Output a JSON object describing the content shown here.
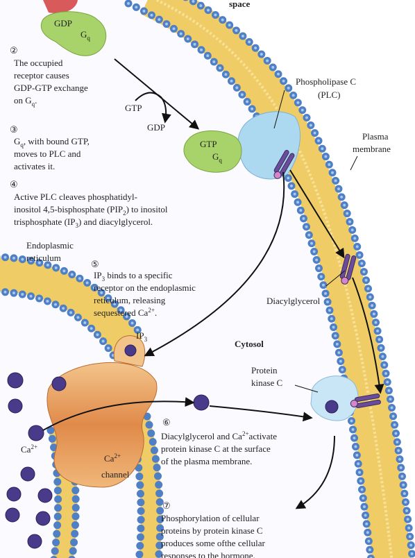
{
  "header": {
    "title": "space"
  },
  "labels": [
    [
      "GDP"
    ],
    [
      "G",
      {
        "sub": "q"
      }
    ],
    [
      "GTP"
    ],
    [
      "GDP"
    ],
    [
      "GTP"
    ],
    [
      "G",
      {
        "sub": "q"
      }
    ],
    [
      "Phospholipase C"
    ],
    [
      "(PLC)"
    ],
    [
      "Plasma"
    ],
    [
      "membrane"
    ],
    [
      "Endoplasmic"
    ],
    [
      "reticulum"
    ],
    [
      "Diacylglycerol"
    ],
    [
      "Cytosol"
    ],
    [
      "IP",
      {
        "sub": "3"
      }
    ],
    [
      "Protein"
    ],
    [
      "kinase C"
    ],
    [
      "Ca",
      {
        "sup": "2+"
      }
    ],
    [
      "Ca",
      {
        "sup": "2+"
      }
    ],
    [
      "channel"
    ]
  ],
  "steps": [
    {
      "number": "②",
      "lines": [
        [
          "The occupied"
        ],
        [
          "receptor causes"
        ],
        [
          "GDP-GTP exchange"
        ],
        [
          "on G",
          {
            "sub": "q"
          },
          "."
        ]
      ]
    },
    {
      "number": "③",
      "lines": [
        [
          "G",
          {
            "sub": "q"
          },
          ", with bound GTP,"
        ],
        [
          "moves to PLC and"
        ],
        [
          "activates it."
        ]
      ]
    },
    {
      "number": "④",
      "lines": [
        [
          "Active PLC cleaves phosphatidyl-"
        ],
        [
          "inositol 4,5-bisphosphate (PIP",
          {
            "sub": "2"
          },
          ") to inositol"
        ],
        [
          "trisphosphate (IP",
          {
            "sub": "3"
          },
          ") and diacylglycerol."
        ]
      ]
    },
    {
      "number": "⑤",
      "lines": [
        [
          "IP",
          {
            "sub": "3"
          },
          " binds to a specific"
        ],
        [
          "receptor on the endoplasmic"
        ],
        [
          "reticulum, releasing"
        ],
        [
          "sequestered Ca",
          {
            "sup": "2+"
          },
          "."
        ]
      ]
    },
    {
      "number": "⑥",
      "lines": [
        [
          "Diacylglycerol and Ca",
          {
            "sup": "2+"
          },
          "activate"
        ],
        [
          "protein kinase C at the surface"
        ],
        [
          "of the plasma membrane."
        ]
      ]
    },
    {
      "number": "⑦",
      "lines": [
        [
          "Phosphorylation of cellular"
        ],
        [
          "proteins by protein kinase C"
        ],
        [
          "produces some ofthe cellular"
        ],
        [
          "responses to the hormone."
        ]
      ]
    }
  ]
}
